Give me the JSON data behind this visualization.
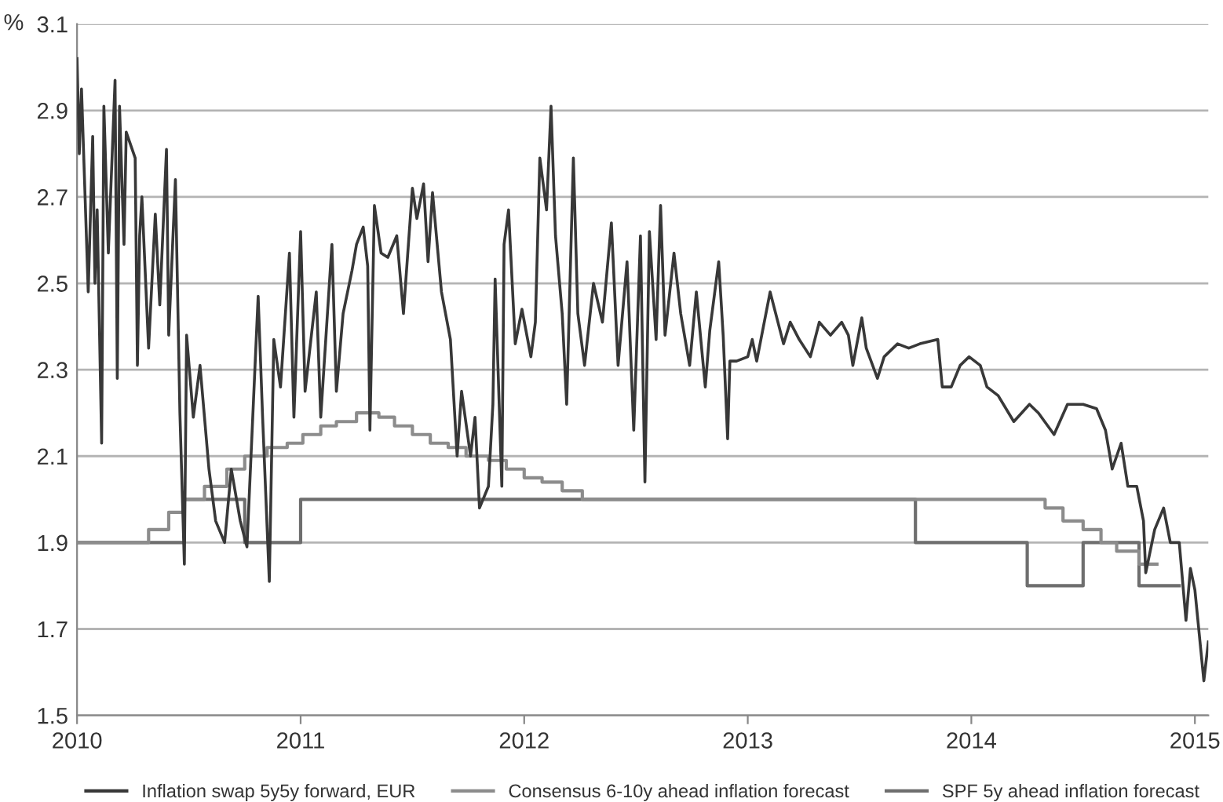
{
  "chart_data": {
    "type": "line",
    "ylabel": "%",
    "xlim": [
      2010,
      2015.06
    ],
    "xticks": [
      2010,
      2011,
      2012,
      2013,
      2014,
      2015
    ],
    "ylim": [
      1.5,
      3.1
    ],
    "yticks": [
      1.5,
      1.7,
      1.9,
      2.1,
      2.3,
      2.5,
      2.7,
      2.9,
      3.1
    ],
    "grid": "y",
    "legend": "bottom",
    "series": [
      {
        "name": "Inflation swap 5y5y forward, EUR",
        "color": "#383838",
        "x": [
          2010.0,
          2010.01,
          2010.02,
          2010.05,
          2010.07,
          2010.08,
          2010.09,
          2010.11,
          2010.12,
          2010.14,
          2010.17,
          2010.18,
          2010.19,
          2010.21,
          2010.22,
          2010.26,
          2010.27,
          2010.28,
          2010.29,
          2010.32,
          2010.35,
          2010.37,
          2010.4,
          2010.41,
          2010.44,
          2010.46,
          2010.48,
          2010.49,
          2010.52,
          2010.55,
          2010.59,
          2010.62,
          2010.66,
          2010.69,
          2010.73,
          2010.76,
          2010.81,
          2010.83,
          2010.86,
          2010.88,
          2010.91,
          2010.95,
          2010.97,
          2011.0,
          2011.02,
          2011.07,
          2011.09,
          2011.14,
          2011.16,
          2011.19,
          2011.23,
          2011.25,
          2011.28,
          2011.3,
          2011.31,
          2011.33,
          2011.36,
          2011.39,
          2011.43,
          2011.46,
          2011.5,
          2011.52,
          2011.55,
          2011.57,
          2011.59,
          2011.63,
          2011.67,
          2011.7,
          2011.72,
          2011.76,
          2011.78,
          2011.8,
          2011.84,
          2011.86,
          2011.87,
          2011.9,
          2011.91,
          2011.93,
          2011.96,
          2011.99,
          2012.03,
          2012.05,
          2012.07,
          2012.1,
          2012.12,
          2012.14,
          2012.17,
          2012.19,
          2012.22,
          2012.24,
          2012.27,
          2012.31,
          2012.35,
          2012.39,
          2012.42,
          2012.46,
          2012.49,
          2012.52,
          2012.54,
          2012.56,
          2012.59,
          2012.61,
          2012.63,
          2012.67,
          2012.7,
          2012.74,
          2012.77,
          2012.81,
          2012.83,
          2012.87,
          2012.89,
          2012.91,
          2012.92,
          2012.95,
          2013.0,
          2013.02,
          2013.04,
          2013.1,
          2013.16,
          2013.19,
          2013.23,
          2013.28,
          2013.32,
          2013.37,
          2013.42,
          2013.45,
          2013.47,
          2013.51,
          2013.53,
          2013.58,
          2013.61,
          2013.67,
          2013.72,
          2013.77,
          2013.85,
          2013.87,
          2013.91,
          2013.95,
          2013.99,
          2014.04,
          2014.07,
          2014.12,
          2014.19,
          2014.26,
          2014.3,
          2014.37,
          2014.43,
          2014.5,
          2014.56,
          2014.6,
          2014.63,
          2014.67,
          2014.7,
          2014.74,
          2014.77,
          2014.78,
          2014.82,
          2014.86,
          2014.89,
          2014.93,
          2014.96,
          2014.98,
          2015.0,
          2015.04,
          2015.06
        ],
        "values": [
          3.02,
          2.8,
          2.95,
          2.48,
          2.84,
          2.5,
          2.67,
          2.13,
          2.91,
          2.57,
          2.97,
          2.28,
          2.91,
          2.59,
          2.85,
          2.79,
          2.31,
          2.61,
          2.7,
          2.35,
          2.66,
          2.45,
          2.81,
          2.38,
          2.74,
          2.2,
          1.85,
          2.38,
          2.19,
          2.31,
          2.07,
          1.95,
          1.9,
          2.07,
          1.95,
          1.89,
          2.47,
          2.19,
          1.81,
          2.37,
          2.26,
          2.57,
          2.19,
          2.62,
          2.25,
          2.48,
          2.19,
          2.59,
          2.25,
          2.43,
          2.53,
          2.59,
          2.63,
          2.54,
          2.16,
          2.68,
          2.57,
          2.56,
          2.61,
          2.43,
          2.72,
          2.65,
          2.73,
          2.55,
          2.71,
          2.48,
          2.37,
          2.1,
          2.25,
          2.1,
          2.19,
          1.98,
          2.03,
          2.22,
          2.51,
          2.03,
          2.59,
          2.67,
          2.36,
          2.44,
          2.33,
          2.41,
          2.79,
          2.67,
          2.91,
          2.61,
          2.43,
          2.22,
          2.79,
          2.43,
          2.31,
          2.5,
          2.41,
          2.64,
          2.31,
          2.55,
          2.16,
          2.61,
          2.04,
          2.62,
          2.37,
          2.68,
          2.38,
          2.57,
          2.43,
          2.31,
          2.48,
          2.26,
          2.39,
          2.55,
          2.38,
          2.14,
          2.32,
          2.32,
          2.33,
          2.37,
          2.32,
          2.48,
          2.36,
          2.41,
          2.37,
          2.33,
          2.41,
          2.38,
          2.41,
          2.38,
          2.31,
          2.42,
          2.35,
          2.28,
          2.33,
          2.36,
          2.35,
          2.36,
          2.37,
          2.26,
          2.26,
          2.31,
          2.33,
          2.31,
          2.26,
          2.24,
          2.18,
          2.22,
          2.2,
          2.15,
          2.22,
          2.22,
          2.21,
          2.16,
          2.07,
          2.13,
          2.03,
          2.03,
          1.95,
          1.83,
          1.93,
          1.98,
          1.9,
          1.9,
          1.72,
          1.84,
          1.79,
          1.58,
          1.67
        ]
      },
      {
        "name": "Consensus 6-10y ahead inflation forecast",
        "color": "#8c8c8c",
        "type": "step",
        "x": [
          2010.0,
          2010.32,
          2010.41,
          2010.48,
          2010.57,
          2010.67,
          2010.75,
          2010.85,
          2010.94,
          2011.01,
          2011.09,
          2011.16,
          2011.25,
          2011.35,
          2011.42,
          2011.5,
          2011.58,
          2011.66,
          2011.74,
          2011.84,
          2011.92,
          2012.0,
          2012.08,
          2012.17,
          2012.26,
          2014.33,
          2014.41,
          2014.5,
          2014.58,
          2014.65,
          2014.75,
          2014.83
        ],
        "values": [
          1.9,
          1.93,
          1.97,
          2.0,
          2.03,
          2.07,
          2.1,
          2.12,
          2.13,
          2.15,
          2.17,
          2.18,
          2.2,
          2.19,
          2.17,
          2.15,
          2.13,
          2.12,
          2.1,
          2.09,
          2.07,
          2.05,
          2.04,
          2.02,
          2.0,
          1.98,
          1.95,
          1.93,
          1.9,
          1.88,
          1.85,
          1.85
        ]
      },
      {
        "name": "SPF 5y ahead inflation forecast",
        "color": "#6e6e6e",
        "type": "step",
        "x": [
          2010.0,
          2010.48,
          2010.75,
          2011.0,
          2013.75,
          2014.25,
          2014.5,
          2014.75,
          2014.93
        ],
        "values": [
          1.9,
          2.0,
          1.9,
          2.0,
          1.9,
          1.8,
          1.9,
          1.8,
          1.8
        ]
      }
    ]
  }
}
